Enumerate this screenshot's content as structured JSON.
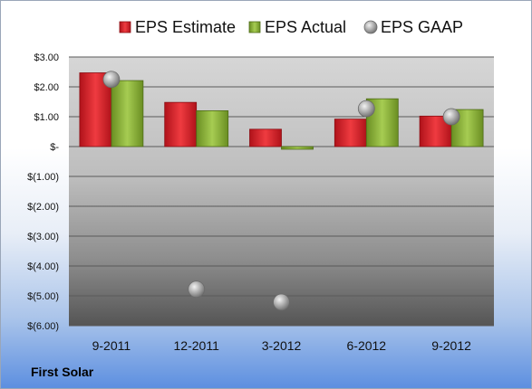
{
  "company": "First Solar",
  "colors": {
    "estimate": "#d9262b",
    "actual": "#8cb33a",
    "gaap": "#b5b5b5"
  },
  "chart_data": {
    "type": "bar",
    "categories": [
      "9-2011",
      "12-2011",
      "3-2012",
      "6-2012",
      "9-2012"
    ],
    "series": [
      {
        "name": "EPS Estimate",
        "kind": "bar",
        "values": [
          2.47,
          1.48,
          0.58,
          0.92,
          1.02
        ]
      },
      {
        "name": "EPS Actual",
        "kind": "bar",
        "values": [
          2.21,
          1.2,
          -0.09,
          1.6,
          1.24
        ]
      },
      {
        "name": "EPS GAAP",
        "kind": "marker",
        "values": [
          2.25,
          -4.78,
          -5.21,
          1.27,
          1.0
        ]
      }
    ],
    "ylim": [
      -6,
      3
    ],
    "yticks": [
      3,
      2,
      1,
      0,
      -1,
      -2,
      -3,
      -4,
      -5,
      -6
    ],
    "ytick_labels": [
      "$3.00",
      "$2.00",
      "$1.00",
      "$-",
      "$(1.00)",
      "$(2.00)",
      "$(3.00)",
      "$(4.00)",
      "$(5.00)",
      "$(6.00)"
    ],
    "grid": true,
    "legend_position": "top"
  }
}
